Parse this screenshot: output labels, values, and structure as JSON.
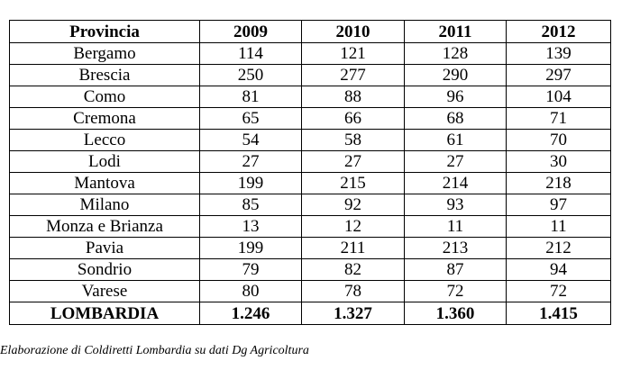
{
  "table": {
    "headers": [
      "Provincia",
      "2009",
      "2010",
      "2011",
      "2012"
    ],
    "rows": [
      [
        "Bergamo",
        "114",
        "121",
        "128",
        "139"
      ],
      [
        "Brescia",
        "250",
        "277",
        "290",
        "297"
      ],
      [
        "Como",
        "81",
        "88",
        "96",
        "104"
      ],
      [
        "Cremona",
        "65",
        "66",
        "68",
        "71"
      ],
      [
        "Lecco",
        "54",
        "58",
        "61",
        "70"
      ],
      [
        "Lodi",
        "27",
        "27",
        "27",
        "30"
      ],
      [
        "Mantova",
        "199",
        "215",
        "214",
        "218"
      ],
      [
        "Milano",
        "85",
        "92",
        "93",
        "97"
      ],
      [
        "Monza e Brianza",
        "13",
        "12",
        "11",
        "11"
      ],
      [
        "Pavia",
        "199",
        "211",
        "213",
        "212"
      ],
      [
        "Sondrio",
        "79",
        "82",
        "87",
        "94"
      ],
      [
        "Varese",
        "80",
        "78",
        "72",
        "72"
      ]
    ],
    "total": [
      "LOMBARDIA",
      "1.246",
      "1.327",
      "1.360",
      "1.415"
    ]
  },
  "source_note": "Elaborazione di Coldiretti Lombardia su dati Dg Agricoltura"
}
